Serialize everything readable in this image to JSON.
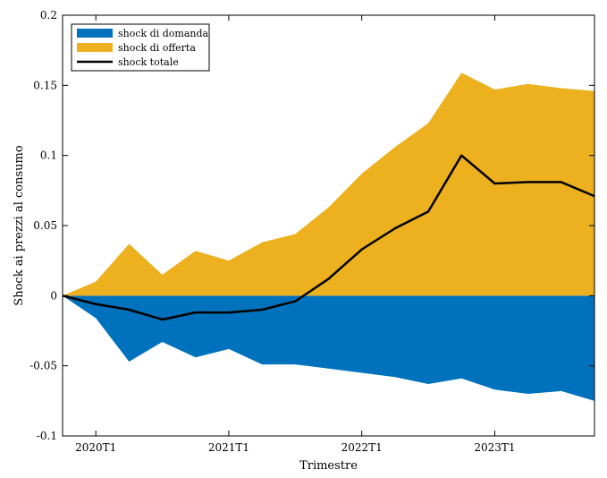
{
  "chart_data": {
    "type": "area",
    "xlabel": "Trimestre",
    "ylabel": "Shock ai prezzi al consumo",
    "x_tick_labels": [
      "2020T1",
      "2021T1",
      "2022T1",
      "2023T1"
    ],
    "x_tick_index": [
      1,
      5,
      9,
      13
    ],
    "y_ticks": [
      "-0.1",
      "-0.05",
      "0",
      "0.05",
      "0.1",
      "0.15",
      "0.2"
    ],
    "ylim": [
      -0.1,
      0.2
    ],
    "n_points": 17,
    "legend_position": "top-left",
    "series": [
      {
        "name": "shock di domanda",
        "kind": "area",
        "color": "#0072BD",
        "values": [
          0,
          -0.016,
          -0.047,
          -0.033,
          -0.044,
          -0.038,
          -0.049,
          -0.049,
          -0.052,
          -0.055,
          -0.058,
          -0.063,
          -0.059,
          -0.067,
          -0.07,
          -0.068,
          -0.075
        ]
      },
      {
        "name": "shock di offerta",
        "kind": "area",
        "color": "#EDB120",
        "values": [
          0,
          0.01,
          0.037,
          0.015,
          0.032,
          0.025,
          0.038,
          0.044,
          0.063,
          0.087,
          0.106,
          0.123,
          0.159,
          0.147,
          0.151,
          0.148,
          0.146
        ]
      },
      {
        "name": "shock totale",
        "kind": "line",
        "color": "#000000",
        "values": [
          0,
          -0.006,
          -0.01,
          -0.017,
          -0.012,
          -0.012,
          -0.01,
          -0.004,
          0.012,
          0.033,
          0.048,
          0.06,
          0.1,
          0.08,
          0.081,
          0.081,
          0.071
        ]
      }
    ]
  }
}
